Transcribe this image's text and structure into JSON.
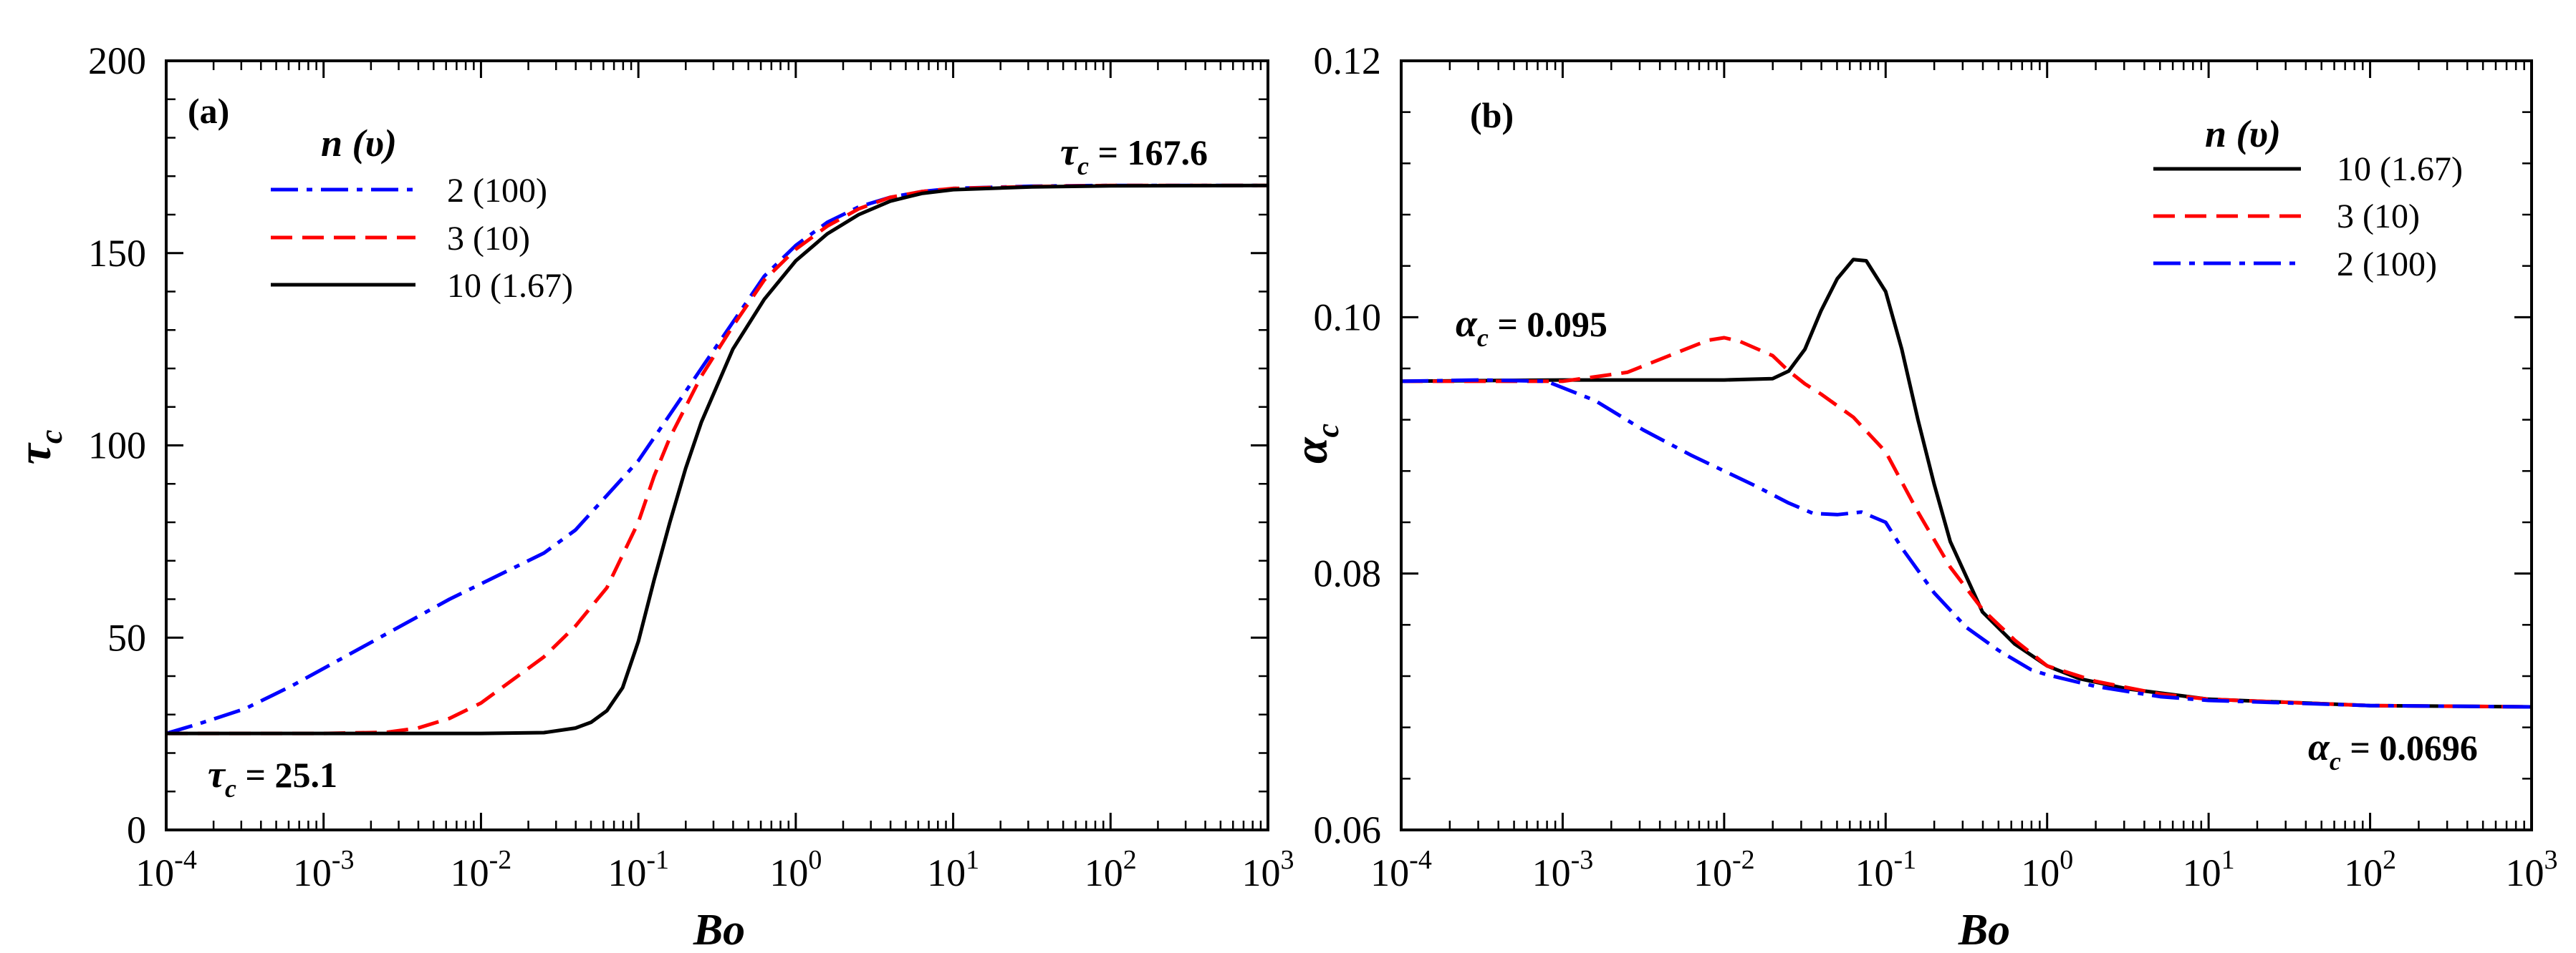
{
  "chart_data": [
    {
      "type": "line",
      "panel_label": "(a)",
      "x_scale": "log",
      "xlim": [
        0.0001,
        1000
      ],
      "ylim": [
        0,
        200
      ],
      "xlabel": "Bo",
      "ylabel_symbol": "τ",
      "ylabel_subscript": "c",
      "x_ticks": [
        {
          "base": "10",
          "exp": "-4"
        },
        {
          "base": "10",
          "exp": "-3"
        },
        {
          "base": "10",
          "exp": "-2"
        },
        {
          "base": "10",
          "exp": "-1"
        },
        {
          "base": "10",
          "exp": "0"
        },
        {
          "base": "10",
          "exp": "1"
        },
        {
          "base": "10",
          "exp": "2"
        },
        {
          "base": "10",
          "exp": "3"
        }
      ],
      "y_ticks": [
        "0",
        "50",
        "100",
        "150",
        "200"
      ],
      "y_tick_values": [
        0,
        50,
        100,
        150,
        200
      ],
      "y_minor_step": 10,
      "legend": {
        "title_var": "n",
        "title_param": "(υ)",
        "position": "top-left",
        "entries": [
          "2 (100)",
          "3 (10)",
          "10 (1.67)"
        ]
      },
      "annotations": [
        {
          "symbol": "τ",
          "sub": "c",
          "text": " = 167.6",
          "position": "top-right"
        },
        {
          "symbol": "τ",
          "sub": "c",
          "text": " = 25.1",
          "position": "bottom-left"
        }
      ],
      "series": [
        {
          "name": "2 (100)",
          "color": "#0000ff",
          "style": "dashdot",
          "points": [
            [
              -4,
              25.1
            ],
            [
              -3.8,
              27.5
            ],
            [
              -3.5,
              31.5
            ],
            [
              -3.2,
              37.5
            ],
            [
              -3.0,
              42
            ],
            [
              -2.6,
              51
            ],
            [
              -2.2,
              60
            ],
            [
              -2.0,
              64
            ],
            [
              -1.8,
              68
            ],
            [
              -1.6,
              72
            ],
            [
              -1.4,
              78
            ],
            [
              -1.2,
              87
            ],
            [
              -1.0,
              96
            ],
            [
              -0.8,
              108
            ],
            [
              -0.6,
              120
            ],
            [
              -0.4,
              132
            ],
            [
              -0.2,
              144
            ],
            [
              0.0,
              152
            ],
            [
              0.2,
              158
            ],
            [
              0.4,
              162
            ],
            [
              0.6,
              164.5
            ],
            [
              0.8,
              166
            ],
            [
              1.0,
              166.8
            ],
            [
              1.5,
              167.4
            ],
            [
              2.0,
              167.6
            ],
            [
              3.0,
              167.6
            ]
          ]
        },
        {
          "name": "3 (10)",
          "color": "#ff0000",
          "style": "dashed",
          "points": [
            [
              -4,
              25.1
            ],
            [
              -3.0,
              25.1
            ],
            [
              -2.6,
              25.4
            ],
            [
              -2.4,
              26.5
            ],
            [
              -2.2,
              29
            ],
            [
              -2.0,
              33
            ],
            [
              -1.8,
              39
            ],
            [
              -1.6,
              45
            ],
            [
              -1.4,
              53
            ],
            [
              -1.2,
              63
            ],
            [
              -1.0,
              80
            ],
            [
              -0.9,
              92
            ],
            [
              -0.8,
              102
            ],
            [
              -0.6,
              118
            ],
            [
              -0.4,
              131
            ],
            [
              -0.2,
              143
            ],
            [
              0.0,
              151
            ],
            [
              0.2,
              157
            ],
            [
              0.4,
              161.5
            ],
            [
              0.6,
              164.5
            ],
            [
              0.8,
              166
            ],
            [
              1.0,
              166.8
            ],
            [
              1.5,
              167.3
            ],
            [
              2.0,
              167.6
            ],
            [
              3.0,
              167.6
            ]
          ]
        },
        {
          "name": "10 (1.67)",
          "color": "#000000",
          "style": "solid",
          "points": [
            [
              -4,
              25.1
            ],
            [
              -2.0,
              25.1
            ],
            [
              -1.6,
              25.3
            ],
            [
              -1.4,
              26.5
            ],
            [
              -1.3,
              28
            ],
            [
              -1.2,
              31
            ],
            [
              -1.1,
              37
            ],
            [
              -1.0,
              49
            ],
            [
              -0.9,
              65
            ],
            [
              -0.8,
              80
            ],
            [
              -0.7,
              94
            ],
            [
              -0.6,
              106
            ],
            [
              -0.4,
              125
            ],
            [
              -0.2,
              138
            ],
            [
              0.0,
              148
            ],
            [
              0.2,
              155
            ],
            [
              0.4,
              160
            ],
            [
              0.6,
              163.5
            ],
            [
              0.8,
              165.5
            ],
            [
              1.0,
              166.5
            ],
            [
              1.5,
              167.2
            ],
            [
              2.0,
              167.5
            ],
            [
              3.0,
              167.6
            ]
          ]
        }
      ]
    },
    {
      "type": "line",
      "panel_label": "(b)",
      "x_scale": "log",
      "xlim": [
        0.0001,
        1000
      ],
      "ylim": [
        0.06,
        0.12
      ],
      "xlabel": "Bo",
      "ylabel_symbol": "α",
      "ylabel_subscript": "c",
      "x_ticks": [
        {
          "base": "10",
          "exp": "-4"
        },
        {
          "base": "10",
          "exp": "-3"
        },
        {
          "base": "10",
          "exp": "-2"
        },
        {
          "base": "10",
          "exp": "-1"
        },
        {
          "base": "10",
          "exp": "0"
        },
        {
          "base": "10",
          "exp": "1"
        },
        {
          "base": "10",
          "exp": "2"
        },
        {
          "base": "10",
          "exp": "3"
        }
      ],
      "y_ticks": [
        "0.06",
        "0.08",
        "0.10",
        "0.12"
      ],
      "y_tick_values": [
        0.06,
        0.08,
        0.1,
        0.12
      ],
      "y_minor_step": 0.004,
      "legend": {
        "title_var": "n",
        "title_param": "(υ)",
        "position": "top-right",
        "entries": [
          "10 (1.67)",
          "3 (10)",
          "2 (100)"
        ]
      },
      "annotations": [
        {
          "symbol": "α",
          "sub": "c",
          "text": " = 0.095",
          "position": "left"
        },
        {
          "symbol": "α",
          "sub": "c",
          "text": " = 0.0696",
          "position": "bottom-right"
        }
      ],
      "series": [
        {
          "name": "10 (1.67)",
          "color": "#000000",
          "style": "solid",
          "points": [
            [
              -4,
              0.095
            ],
            [
              -3.0,
              0.0951
            ],
            [
              -2.0,
              0.0951
            ],
            [
              -1.7,
              0.0952
            ],
            [
              -1.6,
              0.0958
            ],
            [
              -1.5,
              0.0975
            ],
            [
              -1.4,
              0.1005
            ],
            [
              -1.3,
              0.103
            ],
            [
              -1.2,
              0.1045
            ],
            [
              -1.12,
              0.1044
            ],
            [
              -1.0,
              0.102
            ],
            [
              -0.9,
              0.0975
            ],
            [
              -0.8,
              0.092
            ],
            [
              -0.7,
              0.087
            ],
            [
              -0.6,
              0.0825
            ],
            [
              -0.4,
              0.077
            ],
            [
              -0.2,
              0.0745
            ],
            [
              0.0,
              0.0728
            ],
            [
              0.2,
              0.0718
            ],
            [
              0.5,
              0.071
            ],
            [
              1.0,
              0.0702
            ],
            [
              2.0,
              0.0697
            ],
            [
              3.0,
              0.0696
            ]
          ]
        },
        {
          "name": "3 (10)",
          "color": "#ff0000",
          "style": "dashed",
          "points": [
            [
              -4,
              0.095
            ],
            [
              -3.0,
              0.095
            ],
            [
              -2.6,
              0.0957
            ],
            [
              -2.3,
              0.0972
            ],
            [
              -2.1,
              0.0982
            ],
            [
              -2.0,
              0.0984
            ],
            [
              -1.9,
              0.0981
            ],
            [
              -1.7,
              0.097
            ],
            [
              -1.6,
              0.0958
            ],
            [
              -1.5,
              0.0948
            ],
            [
              -1.4,
              0.094
            ],
            [
              -1.2,
              0.0922
            ],
            [
              -1.0,
              0.0895
            ],
            [
              -0.8,
              0.0848
            ],
            [
              -0.6,
              0.0805
            ],
            [
              -0.4,
              0.0772
            ],
            [
              -0.2,
              0.0748
            ],
            [
              0.0,
              0.0728
            ],
            [
              0.3,
              0.0716
            ],
            [
              0.7,
              0.0706
            ],
            [
              1.0,
              0.0702
            ],
            [
              2.0,
              0.0697
            ],
            [
              3.0,
              0.0696
            ]
          ]
        },
        {
          "name": "2 (100)",
          "color": "#0000ff",
          "style": "dashdot",
          "points": [
            [
              -4,
              0.095
            ],
            [
              -3.5,
              0.0951
            ],
            [
              -3.1,
              0.095
            ],
            [
              -2.8,
              0.0935
            ],
            [
              -2.5,
              0.0912
            ],
            [
              -2.2,
              0.0892
            ],
            [
              -2.0,
              0.088
            ],
            [
              -1.8,
              0.0868
            ],
            [
              -1.6,
              0.0855
            ],
            [
              -1.45,
              0.0847
            ],
            [
              -1.3,
              0.0846
            ],
            [
              -1.15,
              0.0848
            ],
            [
              -1.0,
              0.084
            ],
            [
              -0.9,
              0.082
            ],
            [
              -0.7,
              0.0785
            ],
            [
              -0.5,
              0.0758
            ],
            [
              -0.3,
              0.074
            ],
            [
              -0.1,
              0.0725
            ],
            [
              0.0,
              0.0721
            ],
            [
              0.3,
              0.0712
            ],
            [
              0.7,
              0.0704
            ],
            [
              1.0,
              0.0701
            ],
            [
              2.0,
              0.0697
            ],
            [
              3.0,
              0.0696
            ]
          ]
        }
      ]
    }
  ]
}
